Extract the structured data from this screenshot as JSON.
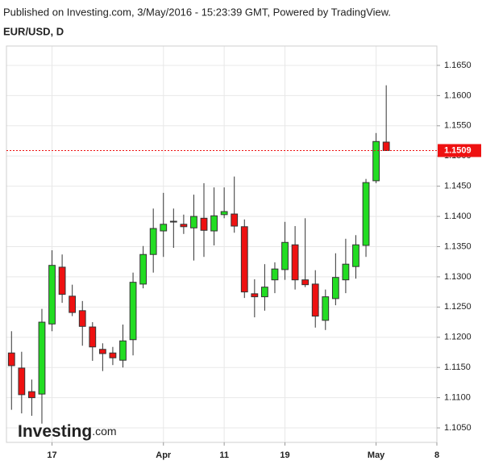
{
  "chart_data": {
    "type": "candlestick",
    "subtitle": "Published on Investing.com, 3/May/2016 - 15:23:39 GMT, Powered by TradingView.",
    "title": "EUR/USD, D",
    "logo": "Investing",
    "logo_suffix": ".com",
    "x": [
      0,
      1,
      2,
      3,
      4,
      5,
      6,
      7,
      8,
      9,
      10,
      11,
      12,
      13,
      14,
      15,
      16,
      17,
      18,
      19,
      20,
      21,
      22,
      23,
      24,
      25,
      26,
      27,
      28,
      29,
      30,
      31,
      32,
      33,
      34,
      35,
      36,
      37
    ],
    "open": [
      1.1174,
      1.1149,
      1.111,
      1.1106,
      1.1222,
      1.1316,
      1.1268,
      1.1244,
      1.1217,
      1.118,
      1.1174,
      1.1162,
      1.1196,
      1.1288,
      1.1337,
      1.1376,
      1.1391,
      1.1387,
      1.1381,
      1.1397,
      1.1376,
      1.1403,
      1.1404,
      1.1383,
      1.1272,
      1.1267,
      1.1295,
      1.1312,
      1.1353,
      1.1295,
      1.1288,
      1.1228,
      1.1264,
      1.1295,
      1.1317,
      1.1352,
      1.1459,
      1.1523
    ],
    "high": [
      1.121,
      1.1176,
      1.113,
      1.1247,
      1.1344,
      1.1337,
      1.1287,
      1.126,
      1.1225,
      1.119,
      1.1184,
      1.1221,
      1.1307,
      1.1351,
      1.1413,
      1.1439,
      1.1413,
      1.1403,
      1.1436,
      1.1455,
      1.1448,
      1.1448,
      1.1466,
      1.1395,
      1.1296,
      1.1321,
      1.1324,
      1.1391,
      1.1384,
      1.1397,
      1.1311,
      1.1279,
      1.1339,
      1.1363,
      1.1369,
      1.1462,
      1.1538,
      1.1617
    ],
    "low": [
      1.108,
      1.1074,
      1.107,
      1.1057,
      1.121,
      1.1257,
      1.1235,
      1.1186,
      1.1161,
      1.1144,
      1.1154,
      1.115,
      1.117,
      1.1281,
      1.1307,
      1.1333,
      1.1348,
      1.1371,
      1.1327,
      1.1333,
      1.1352,
      1.1397,
      1.1373,
      1.1265,
      1.1233,
      1.1244,
      1.1273,
      1.1295,
      1.1279,
      1.1283,
      1.1216,
      1.1212,
      1.1253,
      1.1273,
      1.1297,
      1.1333,
      1.1455,
      1.1509
    ],
    "close": [
      1.1153,
      1.1105,
      1.11,
      1.1225,
      1.1319,
      1.1271,
      1.1241,
      1.1218,
      1.1184,
      1.1173,
      1.1166,
      1.1194,
      1.1291,
      1.1337,
      1.138,
      1.1387,
      1.1392,
      1.1383,
      1.14,
      1.1377,
      1.1401,
      1.1408,
      1.1384,
      1.1275,
      1.1267,
      1.1283,
      1.1313,
      1.1357,
      1.1295,
      1.1287,
      1.1235,
      1.1267,
      1.1299,
      1.1321,
      1.1353,
      1.1456,
      1.1524,
      1.1509
    ],
    "up_color": "#22dd22",
    "down_color": "#ee1111",
    "last_price": 1.1509,
    "last_price_color": "#ee1111",
    "xlim": [
      -0.5,
      42
    ],
    "xticks": [
      {
        "value": 4,
        "label": "17"
      },
      {
        "value": 15,
        "label": "Apr"
      },
      {
        "value": 21,
        "label": "11"
      },
      {
        "value": 27,
        "label": "19"
      },
      {
        "value": 36,
        "label": "May"
      },
      {
        "value": 42,
        "label": "8"
      }
    ],
    "ylim": [
      1.1026,
      1.1682
    ],
    "yticks": [
      {
        "value": 1.105,
        "label": "1.1050"
      },
      {
        "value": 1.11,
        "label": "1.1100"
      },
      {
        "value": 1.115,
        "label": "1.1150"
      },
      {
        "value": 1.12,
        "label": "1.1200"
      },
      {
        "value": 1.125,
        "label": "1.1250"
      },
      {
        "value": 1.13,
        "label": "1.1300"
      },
      {
        "value": 1.135,
        "label": "1.1350"
      },
      {
        "value": 1.14,
        "label": "1.1400"
      },
      {
        "value": 1.145,
        "label": "1.1450"
      },
      {
        "value": 1.15,
        "label": "1.1500"
      },
      {
        "value": 1.155,
        "label": "1.1550"
      },
      {
        "value": 1.16,
        "label": "1.1600"
      },
      {
        "value": 1.165,
        "label": "1.1650"
      }
    ],
    "grid": true
  }
}
